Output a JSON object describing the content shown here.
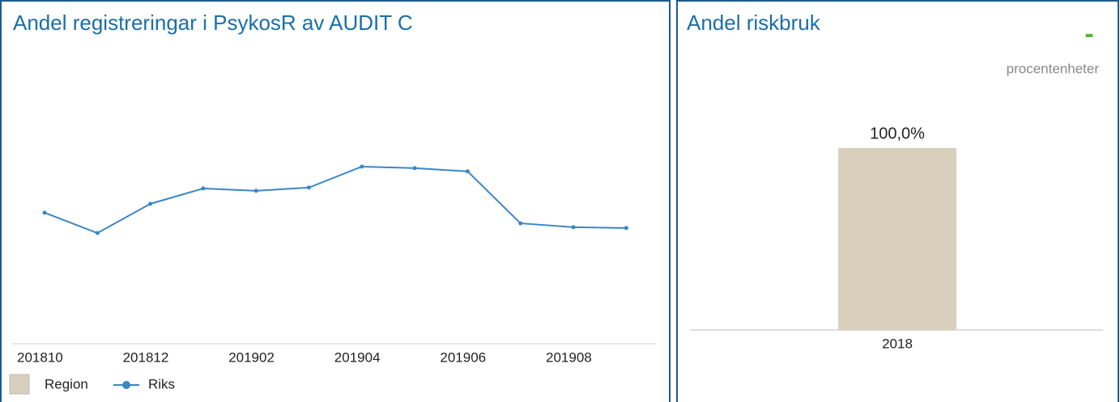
{
  "chart_data": [
    {
      "type": "line",
      "title": "Andel registreringar i PsykosR av AUDIT C",
      "categories": [
        "201810",
        null,
        "201812",
        null,
        "201902",
        null,
        "201904",
        null,
        "201906",
        null,
        "201908",
        null
      ],
      "series": [
        {
          "name": "Region",
          "color": "#d8d0bc",
          "values": [
            null,
            null,
            null,
            null,
            null,
            null,
            null,
            null,
            null,
            null,
            null,
            null
          ]
        },
        {
          "name": "Riks",
          "color": "#3a87c6",
          "values": [
            44.4,
            37.5,
            47.4,
            52.6,
            51.8,
            52.9,
            60.0,
            59.5,
            58.4,
            40.8,
            39.5,
            39.2
          ]
        }
      ],
      "ylim": [
        0,
        100
      ]
    },
    {
      "type": "bar",
      "title": "Andel riskbruk",
      "annotation": "-",
      "subtitle": "procentenheter",
      "categories": [
        "2018"
      ],
      "values": [
        100
      ],
      "value_labels": [
        "100,0%"
      ],
      "color": "#d8d0bc",
      "ylim": [
        0,
        100
      ]
    }
  ]
}
